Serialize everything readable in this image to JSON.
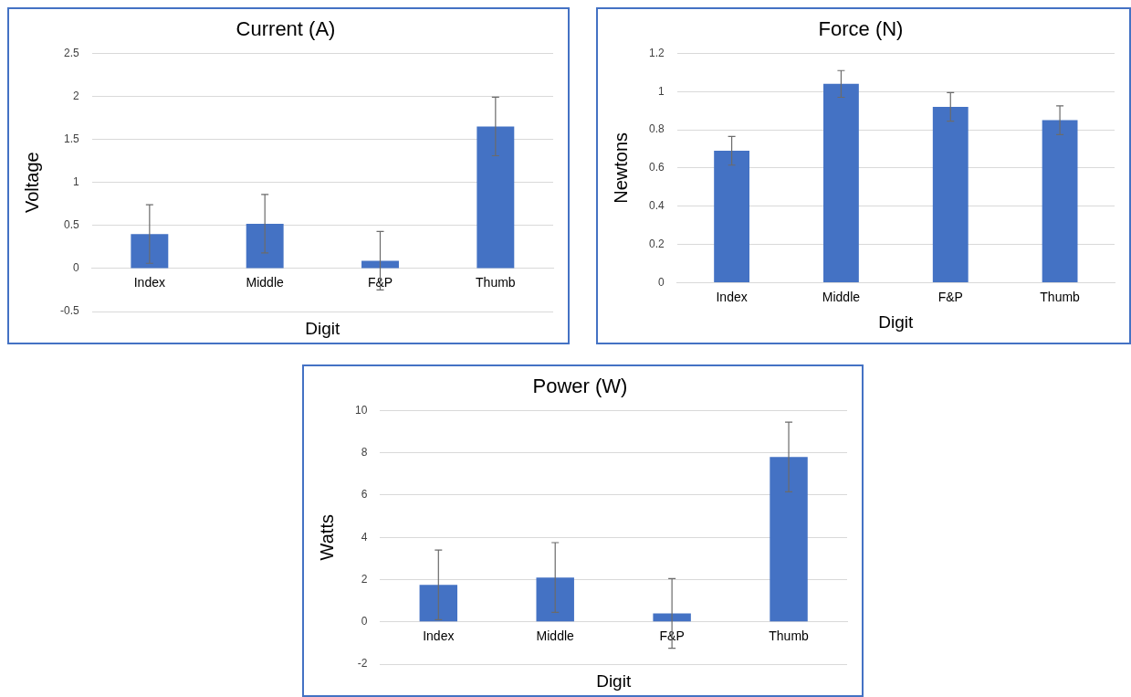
{
  "chart_data": [
    {
      "type": "bar",
      "title": "Current (A)",
      "xlabel": "Digit",
      "ylabel": "Voltage",
      "categories": [
        "Index",
        "Middle",
        "F&P",
        "Thumb"
      ],
      "values": [
        0.4,
        0.52,
        0.09,
        1.65
      ],
      "errors": [
        0.34,
        0.34,
        0.34,
        0.34
      ],
      "color": "#4472c4",
      "ylim": [
        -0.5,
        2.5
      ],
      "yticks": [
        -0.5,
        0,
        0.5,
        1,
        1.5,
        2,
        2.5
      ],
      "grid": "y",
      "legend": false
    },
    {
      "type": "bar",
      "title": "Force (N)",
      "xlabel": "Digit",
      "ylabel": "Newtons",
      "categories": [
        "Index",
        "Middle",
        "F&P",
        "Thumb"
      ],
      "values": [
        0.69,
        1.04,
        0.92,
        0.85
      ],
      "errors": [
        0.075,
        0.07,
        0.075,
        0.075
      ],
      "color": "#4472c4",
      "ylim": [
        0,
        1.2
      ],
      "yticks": [
        0,
        0.2,
        0.4,
        0.6,
        0.8,
        1,
        1.2
      ],
      "grid": "y",
      "legend": false
    },
    {
      "type": "bar",
      "title": "Power (W)",
      "xlabel": "Digit",
      "ylabel": "Watts",
      "categories": [
        "Index",
        "Middle",
        "F&P",
        "Thumb"
      ],
      "values": [
        1.75,
        2.1,
        0.4,
        7.8
      ],
      "errors": [
        1.65,
        1.65,
        1.65,
        1.65
      ],
      "color": "#4472c4",
      "ylim": [
        -2,
        10
      ],
      "yticks": [
        -2,
        0,
        2,
        4,
        6,
        8,
        10
      ],
      "grid": "y",
      "legend": false
    }
  ]
}
